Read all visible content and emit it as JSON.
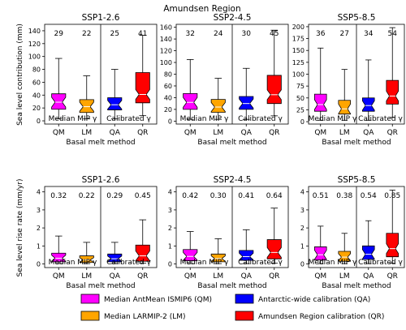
{
  "figure_title": "Amundsen Region",
  "xlabel": "Basal melt method",
  "methods": [
    "QM",
    "LM",
    "QA",
    "QR"
  ],
  "group_labels": [
    "Median MIP γ",
    "Calibrated γ"
  ],
  "method_colors": {
    "QM": "#ff00ff",
    "LM": "#ffa500",
    "QA": "#0000ff",
    "QR": "#ff0000"
  },
  "median_color": "#ffffff",
  "value_label_color": "#228b22",
  "legend": [
    {
      "key": "QM",
      "label": "Median AntMean ISMIP6 (QM)"
    },
    {
      "key": "LM",
      "label": "Median LARMIP-2 (LM)"
    },
    {
      "key": "QA",
      "label": "Antarctic-wide calibration (QA)"
    },
    {
      "key": "QR",
      "label": "Amundsen Region calibration (QR)"
    }
  ],
  "chart_data": [
    {
      "type": "box",
      "title": "SSP1-2.6",
      "ylabel": "Sea level contribution (mm)",
      "ylim": [
        -5,
        150
      ],
      "yticks": [
        0,
        20,
        40,
        60,
        80,
        100,
        120,
        140
      ],
      "value_labels": [
        "29",
        "22",
        "25",
        "41"
      ],
      "boxes": [
        {
          "method": "QM",
          "whislo": 3,
          "q1": 18,
          "med": 29,
          "q3": 42,
          "whishi": 97
        },
        {
          "method": "LM",
          "whislo": 3,
          "q1": 13,
          "med": 22,
          "q3": 33,
          "whishi": 70
        },
        {
          "method": "QA",
          "whislo": 3,
          "q1": 17,
          "med": 25,
          "q3": 36,
          "whishi": 80
        },
        {
          "method": "QR",
          "whislo": 8,
          "q1": 28,
          "med": 41,
          "q3": 75,
          "whishi": 133
        }
      ]
    },
    {
      "type": "box",
      "title": "SSP2-4.5",
      "ylabel": "",
      "ylim": [
        -5,
        165
      ],
      "yticks": [
        0,
        20,
        40,
        60,
        80,
        100,
        120,
        140,
        160
      ],
      "value_labels": [
        "32",
        "24",
        "30",
        "45"
      ],
      "boxes": [
        {
          "method": "QM",
          "whislo": 3,
          "q1": 20,
          "med": 32,
          "q3": 47,
          "whishi": 105
        },
        {
          "method": "LM",
          "whislo": 3,
          "q1": 15,
          "med": 24,
          "q3": 37,
          "whishi": 73
        },
        {
          "method": "QA",
          "whislo": 3,
          "q1": 20,
          "med": 30,
          "q3": 42,
          "whishi": 90
        },
        {
          "method": "QR",
          "whislo": 9,
          "q1": 30,
          "med": 45,
          "q3": 78,
          "whishi": 155
        }
      ]
    },
    {
      "type": "box",
      "title": "SSP5-8.5",
      "ylabel": "",
      "ylim": [
        -5,
        205
      ],
      "yticks": [
        0,
        25,
        50,
        75,
        100,
        125,
        150,
        175,
        200
      ],
      "value_labels": [
        "36",
        "27",
        "34",
        "54"
      ],
      "boxes": [
        {
          "method": "QM",
          "whislo": 3,
          "q1": 22,
          "med": 36,
          "q3": 58,
          "whishi": 155
        },
        {
          "method": "LM",
          "whislo": 3,
          "q1": 16,
          "med": 27,
          "q3": 45,
          "whishi": 110
        },
        {
          "method": "QA",
          "whislo": 3,
          "q1": 22,
          "med": 34,
          "q3": 50,
          "whishi": 130
        },
        {
          "method": "QR",
          "whislo": 9,
          "q1": 37,
          "med": 54,
          "q3": 87,
          "whishi": 198
        }
      ]
    },
    {
      "type": "box",
      "title": "SSP1-2.6",
      "ylabel": "Sea level rise rate (mm/yr)",
      "ylim": [
        -0.2,
        4.3
      ],
      "yticks": [
        0,
        1,
        2,
        3,
        4
      ],
      "value_labels": [
        "0.32",
        "0.22",
        "0.29",
        "0.45"
      ],
      "boxes": [
        {
          "method": "QM",
          "whislo": 0.02,
          "q1": 0.12,
          "med": 0.32,
          "q3": 0.6,
          "whishi": 1.55
        },
        {
          "method": "LM",
          "whislo": 0.02,
          "q1": 0.08,
          "med": 0.22,
          "q3": 0.45,
          "whishi": 1.2
        },
        {
          "method": "QA",
          "whislo": 0.02,
          "q1": 0.12,
          "med": 0.29,
          "q3": 0.55,
          "whishi": 1.2
        },
        {
          "method": "QR",
          "whislo": 0.04,
          "q1": 0.15,
          "med": 0.45,
          "q3": 1.05,
          "whishi": 2.45
        }
      ]
    },
    {
      "type": "box",
      "title": "SSP2-4.5",
      "ylabel": "",
      "ylim": [
        -0.2,
        4.3
      ],
      "yticks": [
        0,
        1,
        2,
        3,
        4
      ],
      "value_labels": [
        "0.42",
        "0.30",
        "0.41",
        "0.64"
      ],
      "boxes": [
        {
          "method": "QM",
          "whislo": 0.02,
          "q1": 0.18,
          "med": 0.42,
          "q3": 0.8,
          "whishi": 1.8
        },
        {
          "method": "LM",
          "whislo": 0.02,
          "q1": 0.12,
          "med": 0.3,
          "q3": 0.55,
          "whishi": 1.4
        },
        {
          "method": "QA",
          "whislo": 0.02,
          "q1": 0.2,
          "med": 0.41,
          "q3": 0.75,
          "whishi": 1.9
        },
        {
          "method": "QR",
          "whislo": 0.04,
          "q1": 0.28,
          "med": 0.64,
          "q3": 1.35,
          "whishi": 3.1
        }
      ]
    },
    {
      "type": "box",
      "title": "SSP5-8.5",
      "ylabel": "",
      "ylim": [
        -0.2,
        4.3
      ],
      "yticks": [
        0,
        1,
        2,
        3,
        4
      ],
      "value_labels": [
        "0.51",
        "0.38",
        "0.54",
        "0.85"
      ],
      "boxes": [
        {
          "method": "QM",
          "whislo": 0.02,
          "q1": 0.22,
          "med": 0.51,
          "q3": 0.95,
          "whishi": 2.1
        },
        {
          "method": "LM",
          "whislo": 0.02,
          "q1": 0.15,
          "med": 0.38,
          "q3": 0.7,
          "whishi": 1.7
        },
        {
          "method": "QA",
          "whislo": 0.02,
          "q1": 0.25,
          "med": 0.54,
          "q3": 1.0,
          "whishi": 2.4
        },
        {
          "method": "QR",
          "whislo": 0.04,
          "q1": 0.4,
          "med": 0.85,
          "q3": 1.7,
          "whishi": 4.1
        }
      ]
    }
  ]
}
